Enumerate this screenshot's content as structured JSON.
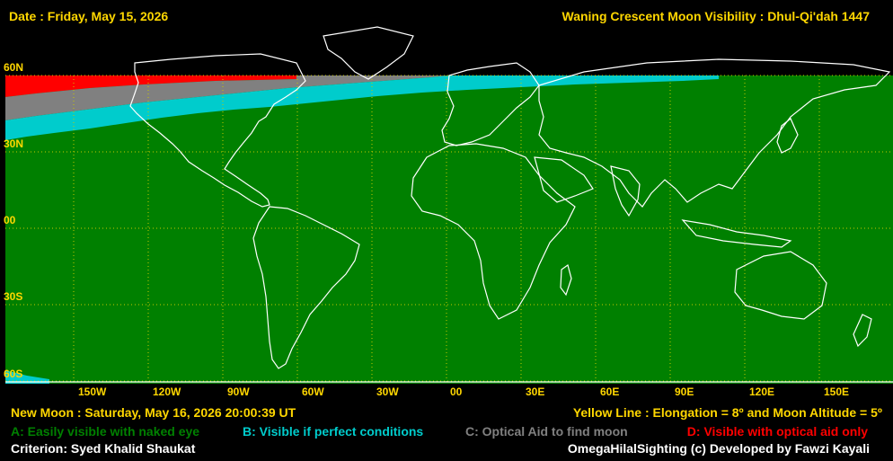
{
  "header": {
    "date": "Date : Friday, May 15, 2026",
    "title": "Waning Crescent Moon Visibility : Dhul-Qi'dah 1447"
  },
  "map": {
    "lat_labels": [
      "60N",
      "30N",
      "00",
      "30S",
      "60S"
    ],
    "lon_labels": [
      "150W",
      "120W",
      "90W",
      "60W",
      "30W",
      "00",
      "30E",
      "60E",
      "90E",
      "120E",
      "150E"
    ],
    "colors": {
      "A": "#008000",
      "B": "#00cccc",
      "C": "#808080",
      "D": "#ff0000",
      "land": "#ffffff",
      "grid": "#c8c800"
    }
  },
  "footer": {
    "new_moon": "New Moon : Saturday, May 16, 2026  20:00:39  UT",
    "yellow_line": "Yellow Line : Elongation = 8º  and Moon Altitude = 5º",
    "legend": {
      "a": "A: Easily visible with naked eye",
      "b": "B: Visible if perfect conditions",
      "c": "C: Optical Aid to find moon",
      "d": "D: Visible with optical aid only"
    },
    "criterion": "Criterion: Syed Khalid Shaukat",
    "credit": "OmegaHilalSighting  (c)  Developed by Fawzi Kayali"
  }
}
